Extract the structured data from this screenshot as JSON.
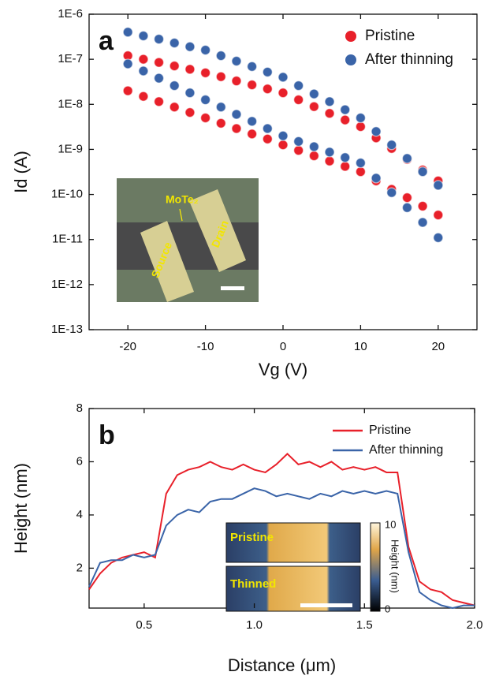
{
  "chart_data": [
    {
      "type": "scatter",
      "panel": "a",
      "xlabel": "Vg (V)",
      "ylabel": "Id (A)",
      "yscale": "log",
      "xlim": [
        -25,
        25
      ],
      "xticks": [
        -20,
        -10,
        0,
        10,
        20
      ],
      "ylim": [
        1e-13,
        1e-06
      ],
      "yticks": [
        {
          "value": 1e-13,
          "label": "1E-13"
        },
        {
          "value": 1e-12,
          "label": "1E-12"
        },
        {
          "value": 1e-11,
          "label": "1E-11"
        },
        {
          "value": 1e-10,
          "label": "1E-10"
        },
        {
          "value": 1e-09,
          "label": "1E-9"
        },
        {
          "value": 1e-08,
          "label": "1E-8"
        },
        {
          "value": 1e-07,
          "label": "1E-7"
        },
        {
          "value": 1e-06,
          "label": "1E-6"
        }
      ],
      "legend": "upper right",
      "inset_labels": [
        "MoTe₂",
        "Source",
        "Drain"
      ],
      "x": [
        -20,
        -18,
        -16,
        -14,
        -12,
        -10,
        -8,
        -6,
        -4,
        -2,
        0,
        2,
        4,
        6,
        8,
        10,
        12,
        14,
        16,
        18,
        20,
        20,
        18,
        16,
        14,
        12,
        10,
        8,
        6,
        4,
        2,
        0,
        -2,
        -4,
        -6,
        -8,
        -10,
        -12,
        -14,
        -16,
        -18,
        -20
      ],
      "series": [
        {
          "name": "Pristine",
          "color": "#e8202a",
          "values": [
            2e-08,
            1.5e-08,
            1.15e-08,
            8.7e-09,
            6.6e-09,
            5e-09,
            3.8e-09,
            2.9e-09,
            2.2e-09,
            1.7e-09,
            1.26e-09,
            9.5e-10,
            7.2e-10,
            5.5e-10,
            4.2e-10,
            3.2e-10,
            2e-10,
            1.3e-10,
            8.5e-11,
            5.5e-11,
            3.5e-11,
            2e-10,
            3.5e-10,
            6e-10,
            1.05e-09,
            1.8e-09,
            3.2e-09,
            4.5e-09,
            6.3e-09,
            8.9e-09,
            1.26e-08,
            1.8e-08,
            2.2e-08,
            2.7e-08,
            3.3e-08,
            4.1e-08,
            5e-08,
            6e-08,
            7.1e-08,
            8.5e-08,
            1e-07,
            1.2e-07
          ]
        },
        {
          "name": "After thinning",
          "color": "#3a64a8",
          "values": [
            7.9e-08,
            5.5e-08,
            3.8e-08,
            2.6e-08,
            1.8e-08,
            1.26e-08,
            8.7e-09,
            6e-09,
            4.2e-09,
            2.9e-09,
            2e-09,
            1.5e-09,
            1.15e-09,
            8.7e-10,
            6.6e-10,
            5e-10,
            2.3e-10,
            1.1e-10,
            5.1e-11,
            2.4e-11,
            1.1e-11,
            1.6e-10,
            3.2e-10,
            6.3e-10,
            1.26e-09,
            2.5e-09,
            5e-09,
            7.6e-09,
            1.15e-08,
            1.7e-08,
            2.6e-08,
            4e-08,
            5.2e-08,
            6.9e-08,
            9.1e-08,
            1.2e-07,
            1.6e-07,
            1.9e-07,
            2.3e-07,
            2.8e-07,
            3.3e-07,
            4e-07
          ]
        }
      ]
    },
    {
      "type": "line",
      "panel": "b",
      "xlabel": "Distance (μm)",
      "ylabel": "Height (nm)",
      "xlim": [
        0.25,
        2.0
      ],
      "xticks": [
        0.5,
        {
          "value": 1.0,
          "label": "1.0"
        },
        1.5,
        {
          "value": 2.0,
          "label": "2.0"
        }
      ],
      "ylim": [
        0.5,
        8
      ],
      "yticks": [
        2,
        4,
        6,
        8
      ],
      "legend": "upper right",
      "inset_labels": [
        "Pristine",
        "Thinned"
      ],
      "colorbar": {
        "label": "Height (nm)",
        "ticks": [
          0,
          10
        ]
      },
      "x": [
        0.25,
        0.3,
        0.35,
        0.4,
        0.45,
        0.5,
        0.55,
        0.6,
        0.65,
        0.7,
        0.75,
        0.8,
        0.85,
        0.9,
        0.95,
        1.0,
        1.05,
        1.1,
        1.15,
        1.2,
        1.25,
        1.3,
        1.35,
        1.4,
        1.45,
        1.5,
        1.55,
        1.6,
        1.65,
        1.7,
        1.75,
        1.8,
        1.85,
        1.9,
        1.95,
        2.0
      ],
      "series": [
        {
          "name": "Pristine",
          "color": "#e8202a",
          "values": [
            1.2,
            1.8,
            2.2,
            2.4,
            2.5,
            2.6,
            2.4,
            4.8,
            5.5,
            5.7,
            5.8,
            6.0,
            5.8,
            5.7,
            5.9,
            5.7,
            5.6,
            5.9,
            6.3,
            5.9,
            6.0,
            5.8,
            6.0,
            5.7,
            5.8,
            5.7,
            5.8,
            5.6,
            5.6,
            2.8,
            1.5,
            1.2,
            1.1,
            0.8,
            0.7,
            0.6
          ]
        },
        {
          "name": "After thinning",
          "color": "#3a64a8",
          "values": [
            1.3,
            2.2,
            2.3,
            2.3,
            2.5,
            2.4,
            2.5,
            3.6,
            4.0,
            4.2,
            4.1,
            4.5,
            4.6,
            4.6,
            4.8,
            5.0,
            4.9,
            4.7,
            4.8,
            4.7,
            4.6,
            4.8,
            4.7,
            4.9,
            4.8,
            4.9,
            4.8,
            4.9,
            4.8,
            2.6,
            1.1,
            0.8,
            0.6,
            0.5,
            0.6,
            0.6
          ]
        }
      ]
    }
  ]
}
